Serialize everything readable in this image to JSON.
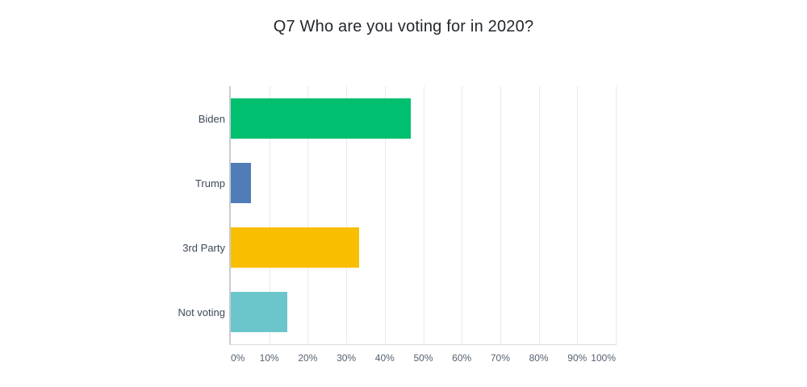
{
  "title": "Q7 Who are you voting for in 2020?",
  "chart_data": {
    "type": "bar",
    "orientation": "horizontal",
    "title": "Q7 Who are you voting for in 2020?",
    "categories": [
      "Biden",
      "Trump",
      "3rd Party",
      "Not voting"
    ],
    "values": [
      46.8,
      5.2,
      33.4,
      14.6
    ],
    "value_unit": "%",
    "xlabel": "",
    "ylabel": "",
    "xlim": [
      0,
      100
    ],
    "x_tick_step": 10,
    "x_tick_labels": [
      "0%",
      "10%",
      "20%",
      "30%",
      "40%",
      "50%",
      "60%",
      "70%",
      "80%",
      "90%",
      "100%"
    ],
    "grid": true,
    "legend": false,
    "bar_colors": [
      "#00BF6F",
      "#507CB8",
      "#F9BE00",
      "#6BC6CB"
    ]
  },
  "colors": {
    "background": "#FFFFFF",
    "title_text": "#24282C",
    "category_label_text": "#3E4A57",
    "tick_label_text": "#556170",
    "gridline": "#E9EAEB",
    "y_axis_line": "#C7CBCF",
    "x_axis_line": "#D9DCDE"
  }
}
